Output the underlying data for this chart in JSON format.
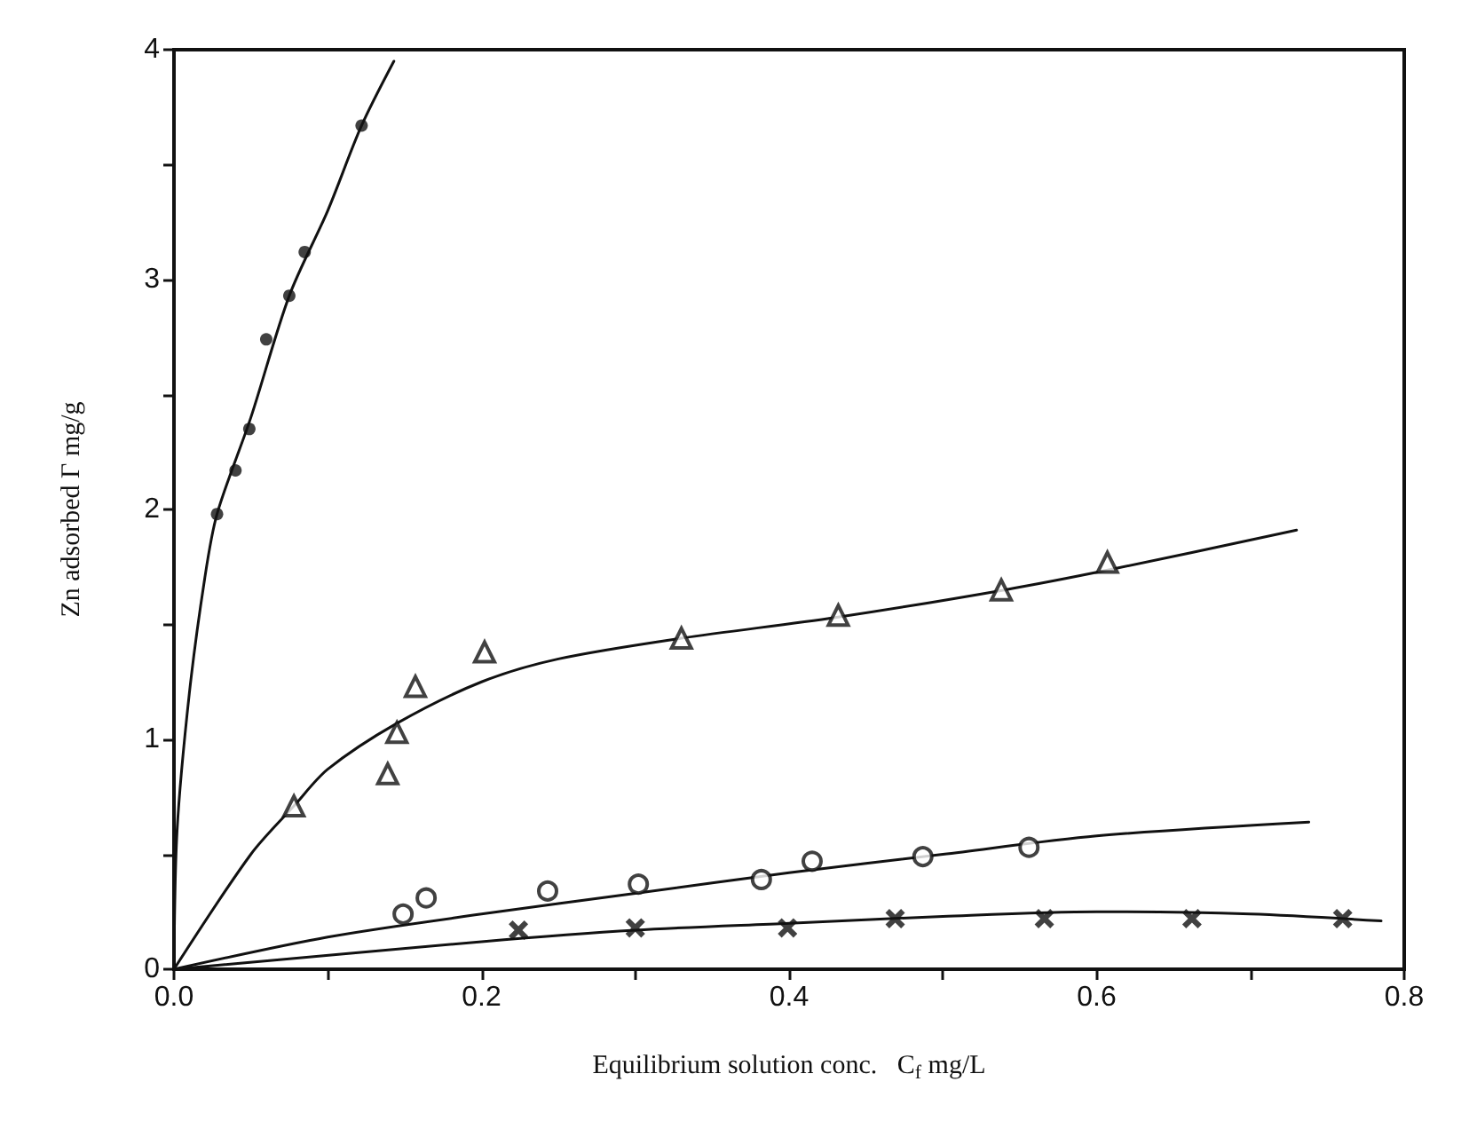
{
  "chart_data": {
    "type": "scatter",
    "xlabel": "Equilibrium solution conc.   C$_{f}$ mg/L",
    "ylabel": "Zn adsorbed Γ mg/g",
    "xlim": [
      0,
      0.8
    ],
    "ylim": [
      0,
      4
    ],
    "xticks": [
      {
        "value": 0,
        "label": "0.0"
      },
      {
        "value": 0.1,
        "label": null
      },
      {
        "value": 0.2,
        "label": "0.2"
      },
      {
        "value": 0.3,
        "label": null
      },
      {
        "value": 0.4,
        "label": "0.4"
      },
      {
        "value": 0.5,
        "label": null
      },
      {
        "value": 0.6,
        "label": "0.6"
      },
      {
        "value": 0.7,
        "label": null
      },
      {
        "value": 0.8,
        "label": "0.8"
      }
    ],
    "yticks": [
      0,
      {
        "value": 0.5,
        "label": null
      },
      1,
      {
        "value": 1.5,
        "label": null
      },
      2,
      {
        "value": 2.5,
        "label": null
      },
      3,
      {
        "value": 3.5,
        "label": null
      },
      4
    ],
    "grid": false,
    "series": [
      {
        "marker": "circle",
        "color": "#111111",
        "x": [
          0.028,
          0.04,
          0.049,
          0.06,
          0.075,
          0.085,
          0.122
        ],
        "values": [
          1.98,
          2.17,
          2.35,
          2.74,
          2.93,
          3.12,
          3.67
        ]
      },
      {
        "marker": "triangle",
        "color": "#111111",
        "x": [
          0.078,
          0.139,
          0.145,
          0.157,
          0.202,
          0.33,
          0.432,
          0.538,
          0.607
        ],
        "values": [
          0.71,
          0.85,
          1.03,
          1.23,
          1.38,
          1.44,
          1.54,
          1.65,
          1.77
        ]
      },
      {
        "marker": "open_circle",
        "color": "#111111",
        "x": [
          0.149,
          0.164,
          0.243,
          0.302,
          0.382,
          0.415,
          0.487,
          0.556
        ],
        "values": [
          0.24,
          0.31,
          0.34,
          0.37,
          0.39,
          0.47,
          0.49,
          0.53
        ]
      },
      {
        "marker": "cross",
        "color": "#111111",
        "x": [
          0.224,
          0.3,
          0.399,
          0.469,
          0.566,
          0.662,
          0.76
        ],
        "values": [
          0.17,
          0.18,
          0.18,
          0.22,
          0.22,
          0.22,
          0.22
        ]
      },
      {
        "type": "line",
        "marker": "none",
        "color": "#111111",
        "x": [
          0,
          0.002,
          0.01,
          0.02,
          0.028,
          0.05,
          0.075,
          0.1,
          0.122,
          0.143
        ],
        "values": [
          0,
          0.6,
          1.2,
          1.7,
          1.98,
          2.4,
          2.93,
          3.3,
          3.67,
          3.95
        ]
      },
      {
        "type": "line",
        "marker": "none",
        "color": "#111111",
        "x": [
          0,
          0.05,
          0.078,
          0.1,
          0.145,
          0.2,
          0.25,
          0.33,
          0.43,
          0.54,
          0.61,
          0.73
        ],
        "values": [
          0,
          0.5,
          0.71,
          0.87,
          1.07,
          1.25,
          1.35,
          1.44,
          1.53,
          1.65,
          1.74,
          1.91
        ]
      },
      {
        "type": "line",
        "marker": "none",
        "color": "#111111",
        "x": [
          0,
          0.1,
          0.2,
          0.3,
          0.4,
          0.5,
          0.6,
          0.738
        ],
        "values": [
          0,
          0.14,
          0.24,
          0.33,
          0.42,
          0.5,
          0.58,
          0.64
        ]
      },
      {
        "type": "line",
        "marker": "none",
        "color": "#111111",
        "x": [
          0,
          0.2,
          0.3,
          0.4,
          0.5,
          0.6,
          0.7,
          0.785
        ],
        "values": [
          0,
          0.12,
          0.17,
          0.2,
          0.23,
          0.25,
          0.24,
          0.21
        ]
      }
    ]
  }
}
